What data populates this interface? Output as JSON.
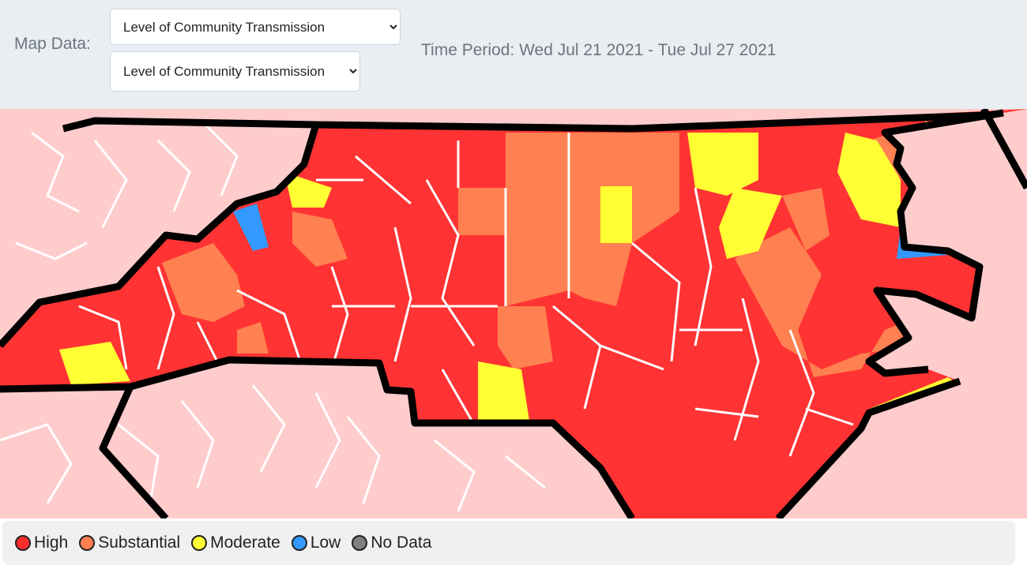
{
  "header": {
    "label": "Map Data:",
    "select_1": "Level of Community Transmission",
    "select_2": "Level of Community Transmission",
    "time_period": "Time Period: Wed Jul 21 2021 - Tue Jul 27 2021"
  },
  "legend": {
    "items": [
      {
        "label": "High",
        "color": "#ff2e2e"
      },
      {
        "label": "Substantial",
        "color": "#ff7f50"
      },
      {
        "label": "Moderate",
        "color": "#ffff33"
      },
      {
        "label": "Low",
        "color": "#3399ff"
      },
      {
        "label": "No Data",
        "color": "#808080"
      }
    ]
  }
}
